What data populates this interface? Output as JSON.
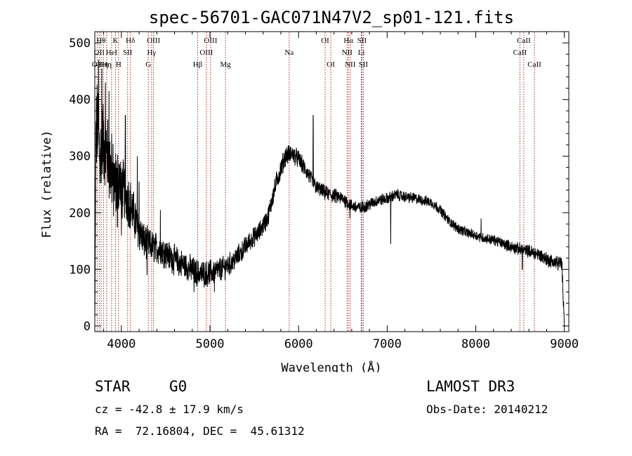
{
  "chart_data": {
    "type": "line",
    "title": "spec-56701-GAC071N47V2_sp01-121.fits",
    "xlabel": "Wavelength (Å)",
    "ylabel": "Flux (relative)",
    "xlim": [
      3700,
      9050
    ],
    "ylim": [
      -10,
      520
    ],
    "x_ticks": [
      4000,
      5000,
      6000,
      7000,
      8000,
      9000
    ],
    "y_ticks": [
      0,
      100,
      200,
      300,
      400,
      500
    ],
    "x_tick_labels": [
      "4000",
      "5000",
      "6000",
      "7000",
      "8000",
      "9000"
    ],
    "y_tick_labels": [
      "0",
      "100",
      "200",
      "300",
      "400",
      "500"
    ],
    "grid": false,
    "series": [
      {
        "name": "flux",
        "envelope": [
          [
            3700,
            5
          ],
          [
            3712,
            330
          ],
          [
            3730,
            360
          ],
          [
            3760,
            300
          ],
          [
            3790,
            330
          ],
          [
            3830,
            310
          ],
          [
            3870,
            280
          ],
          [
            3920,
            245
          ],
          [
            3970,
            260
          ],
          [
            4020,
            240
          ],
          [
            4080,
            225
          ],
          [
            4150,
            190
          ],
          [
            4250,
            150
          ],
          [
            4350,
            140
          ],
          [
            4450,
            135
          ],
          [
            4550,
            122
          ],
          [
            4650,
            112
          ],
          [
            4750,
            104
          ],
          [
            4850,
            94
          ],
          [
            4950,
            92
          ],
          [
            5050,
            96
          ],
          [
            5150,
            102
          ],
          [
            5250,
            112
          ],
          [
            5350,
            130
          ],
          [
            5450,
            150
          ],
          [
            5550,
            165
          ],
          [
            5650,
            190
          ],
          [
            5750,
            255
          ],
          [
            5850,
            300
          ],
          [
            5920,
            305
          ],
          [
            6000,
            295
          ],
          [
            6100,
            270
          ],
          [
            6200,
            245
          ],
          [
            6300,
            235
          ],
          [
            6400,
            230
          ],
          [
            6500,
            225
          ],
          [
            6600,
            212
          ],
          [
            6700,
            208
          ],
          [
            6800,
            215
          ],
          [
            6900,
            222
          ],
          [
            7000,
            225
          ],
          [
            7100,
            232
          ],
          [
            7200,
            228
          ],
          [
            7300,
            226
          ],
          [
            7400,
            222
          ],
          [
            7500,
            218
          ],
          [
            7600,
            205
          ],
          [
            7700,
            185
          ],
          [
            7800,
            172
          ],
          [
            7900,
            165
          ],
          [
            8000,
            160
          ],
          [
            8100,
            155
          ],
          [
            8200,
            152
          ],
          [
            8300,
            146
          ],
          [
            8400,
            140
          ],
          [
            8500,
            135
          ],
          [
            8600,
            132
          ],
          [
            8700,
            127
          ],
          [
            8800,
            118
          ],
          [
            8900,
            112
          ],
          [
            8970,
            110
          ],
          [
            8985,
            60
          ],
          [
            9000,
            10
          ]
        ],
        "noise": [
          [
            3700,
            70
          ],
          [
            3900,
            60
          ],
          [
            4100,
            40
          ],
          [
            4300,
            25
          ],
          [
            5000,
            20
          ],
          [
            5500,
            15
          ],
          [
            5800,
            16
          ],
          [
            6200,
            12
          ],
          [
            7000,
            9
          ],
          [
            7600,
            8
          ],
          [
            8200,
            8
          ],
          [
            8500,
            10
          ],
          [
            9000,
            12
          ]
        ],
        "spikes": [
          [
            3742,
            470
          ],
          [
            3780,
            455
          ],
          [
            3820,
            430
          ],
          [
            3860,
            415
          ],
          [
            3890,
            340
          ],
          [
            3955,
            175
          ],
          [
            4000,
            160
          ],
          [
            4045,
            372
          ],
          [
            4180,
            300
          ],
          [
            4200,
            255
          ],
          [
            4290,
            90
          ],
          [
            4440,
            205
          ],
          [
            4820,
            60
          ],
          [
            5050,
            60
          ],
          [
            6165,
            372
          ],
          [
            6280,
            250
          ],
          [
            6580,
            190
          ],
          [
            7040,
            145
          ],
          [
            8060,
            190
          ],
          [
            8525,
            100
          ]
        ]
      }
    ],
    "line_markers": [
      {
        "wavelength": 3727,
        "label": "OII",
        "row": 2
      },
      {
        "wavelength": 3750,
        "label": "OII",
        "row": 1
      },
      {
        "wavelength": 3771,
        "label": "Hθ",
        "row": 0
      },
      {
        "wavelength": 3798,
        "label": "Hη",
        "row": 2
      },
      {
        "wavelength": 3835,
        "label": "Hη",
        "row": 2
      },
      {
        "wavelength": 3889,
        "label": "HeI",
        "row": 1
      },
      {
        "wavelength": 3934,
        "label": "K",
        "row": 0
      },
      {
        "wavelength": 3968,
        "label": "H",
        "row": 2
      },
      {
        "wavelength": 4070,
        "label": "SII",
        "row": 1
      },
      {
        "wavelength": 4102,
        "label": "Hδ",
        "row": 0
      },
      {
        "wavelength": 4304,
        "label": "G",
        "row": 2
      },
      {
        "wavelength": 4341,
        "label": "Hγ",
        "row": 1
      },
      {
        "wavelength": 4363,
        "label": "OIII",
        "row": 0
      },
      {
        "wavelength": 4861,
        "label": "Hβ",
        "row": 2
      },
      {
        "wavelength": 4959,
        "label": "OIII",
        "row": 1
      },
      {
        "wavelength": 5007,
        "label": "OIII",
        "row": 0
      },
      {
        "wavelength": 5175,
        "label": "Mg",
        "row": 2
      },
      {
        "wavelength": 5894,
        "label": "Na",
        "row": 1
      },
      {
        "wavelength": 6300,
        "label": "OI",
        "row": 0
      },
      {
        "wavelength": 6364,
        "label": "OI",
        "row": 2
      },
      {
        "wavelength": 6548,
        "label": "NII",
        "row": 1
      },
      {
        "wavelength": 6563,
        "label": "Hα",
        "row": 0
      },
      {
        "wavelength": 6583,
        "label": "NII",
        "row": 2
      },
      {
        "wavelength": 6708,
        "label": "Li",
        "row": 1
      },
      {
        "wavelength": 6716,
        "label": "SII",
        "row": 0
      },
      {
        "wavelength": 6731,
        "label": "SII",
        "row": 2
      },
      {
        "wavelength": 8498,
        "label": "CaII",
        "row": 1
      },
      {
        "wavelength": 8542,
        "label": "CaII",
        "row": 0
      },
      {
        "wavelength": 8662,
        "label": "CaII",
        "row": 2
      }
    ]
  },
  "info": {
    "object_type": "STAR",
    "subclass": "G0",
    "survey": "LAMOST DR3",
    "cz": "cz = -42.8 ± 17.9 km/s",
    "obs_date": "Obs-Date: 20140212",
    "coords": "RA =  72.16804, DEC =  45.61312"
  },
  "colors": {
    "spectrum": "#000000",
    "marker_line": "#b22222",
    "axes": "#000000",
    "background": "#ffffff"
  }
}
